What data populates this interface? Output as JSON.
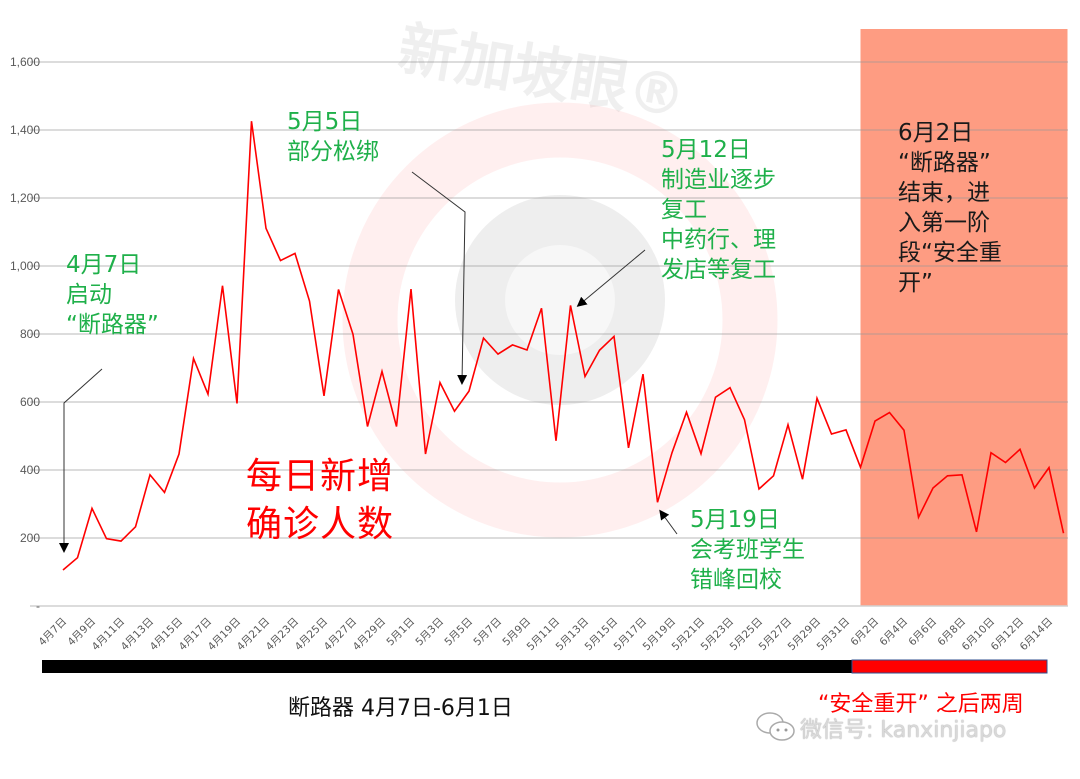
{
  "chart_data": {
    "type": "line",
    "title": "每日新增确诊人数",
    "xlabel": "",
    "ylabel": "",
    "ylim": [
      0,
      1600
    ],
    "yticks": [
      0,
      200,
      400,
      600,
      800,
      1000,
      1200,
      1400,
      1600
    ],
    "ytick_labels": [
      "-",
      "200",
      "400",
      "600",
      "800",
      "1,000",
      "1,200",
      "1,400",
      "1,600"
    ],
    "grid": true,
    "legend": null,
    "x": [
      "4月7日",
      "4月8日",
      "4月9日",
      "4月10日",
      "4月11日",
      "4月12日",
      "4月13日",
      "4月14日",
      "4月15日",
      "4月16日",
      "4月17日",
      "4月18日",
      "4月19日",
      "4月20日",
      "4月21日",
      "4月22日",
      "4月23日",
      "4月24日",
      "4月25日",
      "4月26日",
      "4月27日",
      "4月28日",
      "4月29日",
      "4月30日",
      "5月1日",
      "5月2日",
      "5月3日",
      "5月4日",
      "5月5日",
      "5月6日",
      "5月7日",
      "5月8日",
      "5月9日",
      "5月10日",
      "5月11日",
      "5月12日",
      "5月13日",
      "5月14日",
      "5月15日",
      "5月16日",
      "5月17日",
      "5月18日",
      "5月19日",
      "5月20日",
      "5月21日",
      "5月22日",
      "5月23日",
      "5月24日",
      "5月25日",
      "5月26日",
      "5月27日",
      "5月28日",
      "5月29日",
      "5月30日",
      "5月31日",
      "6月1日",
      "6月2日",
      "6月3日",
      "6月4日",
      "6月5日",
      "6月6日",
      "6月7日",
      "6月8日",
      "6月9日",
      "6月10日",
      "6月11日",
      "6月12日",
      "6月13日",
      "6月14日",
      "6月15日"
    ],
    "series": [
      {
        "name": "每日新增确诊人数",
        "color": "#ff0000",
        "values": [
          106,
          142,
          287,
          198,
          191,
          233,
          386,
          334,
          447,
          728,
          623,
          942,
          596,
          1426,
          1111,
          1016,
          1037,
          897,
          618,
          931,
          799,
          528,
          690,
          528,
          932,
          447,
          657,
          573,
          632,
          788,
          741,
          768,
          753,
          876,
          486,
          884,
          675,
          752,
          793,
          465,
          682,
          305,
          451,
          570,
          448,
          614,
          642,
          548,
          344,
          383,
          533,
          373,
          611,
          506,
          518,
          408,
          544,
          569,
          517,
          261,
          347,
          383,
          386,
          218,
          451,
          422,
          461,
          347,
          407,
          214
        ]
      }
    ],
    "tick_labels_shown": [
      "4月7日",
      "4月9日",
      "4月11日",
      "4月13日",
      "4月15日",
      "4月17日",
      "4月19日",
      "4月21日",
      "4月23日",
      "4月25日",
      "4月27日",
      "4月29日",
      "5月1日",
      "5月3日",
      "5月5日",
      "5月7日",
      "5月9日",
      "5月11日",
      "5月13日",
      "5月15日",
      "5月17日",
      "5月19日",
      "5月21日",
      "5月23日",
      "5月25日",
      "5月27日",
      "5月29日",
      "5月31日",
      "6月2日",
      "6月4日",
      "6月6日",
      "6月8日",
      "6月10日",
      "6月12日",
      "6月14日"
    ],
    "shaded_region": {
      "from": "6月1日",
      "to": "6月15日",
      "color": "#fe9c82"
    },
    "annotations": [
      {
        "date": "4月7日",
        "text": "4月7日\n启动\n“断路器”"
      },
      {
        "date": "5月5日",
        "text": "5月5日\n部分松绑"
      },
      {
        "date": "5月12日",
        "text": "5月12日\n制造业逐步\n复工\n中药行、理\n发店等复工"
      },
      {
        "date": "5月19日",
        "text": "5月19日\n会考班学生\n错峰回校"
      },
      {
        "date": "6月2日",
        "text": "6月2日\n“断路器”\n结束，进\n入第一阶\n段“安全重\n开”"
      }
    ]
  },
  "labels": {
    "big_title": "每日新增\n确诊人数",
    "anno_apr7": "4月7日\n启动\n“断路器”",
    "anno_may5": "5月5日\n部分松绑",
    "anno_may12": "5月12日\n制造业逐步\n复工\n中药行、理\n发店等复工",
    "anno_may19": "5月19日\n会考班学生\n错峰回校",
    "anno_jun2": "6月2日\n“断路器”\n结束，进\n入第一阶\n段“安全重\n开”",
    "footer_left": "断路器 4月7日-6月1日",
    "footer_right": "“安全重开” 之后两周",
    "watermark_logo": "新加坡眼®",
    "watermark_wechat": "微信号: kanxinjiapo"
  },
  "colors": {
    "line": "#ff0000",
    "annotation_green": "#1fb04a",
    "shade": "#fe9c82",
    "bar_black": "#000000",
    "bar_red": "#ff0000",
    "grid": "#d9d9d9"
  }
}
